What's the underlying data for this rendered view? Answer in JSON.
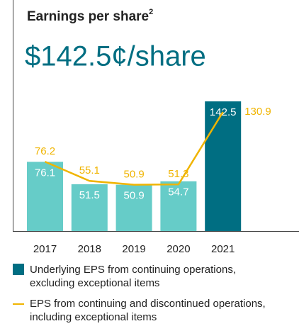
{
  "chart_data": {
    "type": "bar-line",
    "title": "Earnings per share",
    "title_superscript": "2",
    "headline": "$142.5¢/share",
    "categories": [
      "2017",
      "2018",
      "2019",
      "2020",
      "2021"
    ],
    "series": [
      {
        "name": "Underlying EPS from continuing operations, excluding exceptional items",
        "type": "bar",
        "color": "#006e82",
        "colors": [
          "#66ccc8",
          "#66ccc8",
          "#66ccc8",
          "#66ccc8",
          "#006e82"
        ],
        "values": [
          76.1,
          51.5,
          50.9,
          54.7,
          142.5
        ]
      },
      {
        "name": "EPS from continuing and discontinued operations, including exceptional items",
        "type": "line",
        "color": "#f0b400",
        "values": [
          76.2,
          55.1,
          50.9,
          51.3,
          130.9
        ]
      }
    ]
  }
}
